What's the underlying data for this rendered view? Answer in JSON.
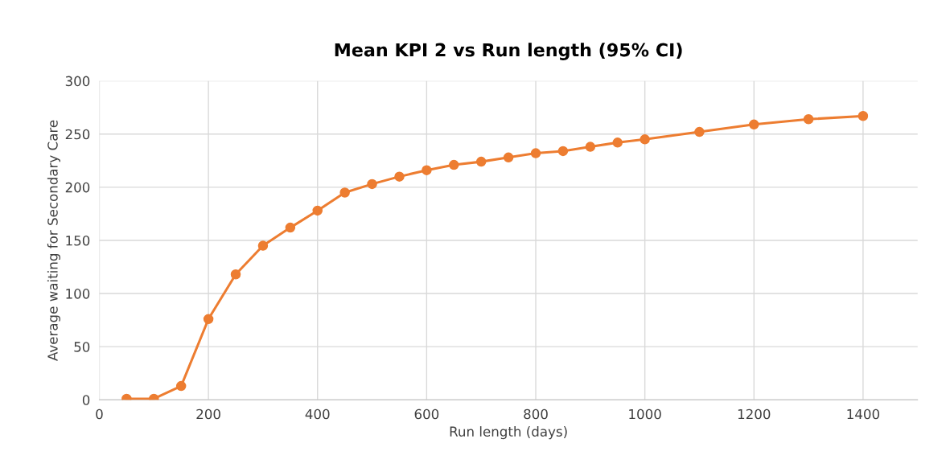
{
  "chart_data": {
    "type": "line",
    "title": "Mean KPI 2 vs Run length (95% CI)",
    "xlabel": "Run length (days)",
    "ylabel": "Average waiting for Secondary Care",
    "x": [
      50,
      100,
      150,
      200,
      250,
      300,
      350,
      400,
      450,
      500,
      550,
      600,
      650,
      700,
      750,
      800,
      850,
      900,
      950,
      1000,
      1100,
      1200,
      1300,
      1400
    ],
    "series": [
      {
        "color": "#ed7d31",
        "values": [
          1,
          1,
          13,
          76,
          118,
          145,
          162,
          178,
          195,
          203,
          210,
          216,
          221,
          224,
          228,
          232,
          234,
          238,
          242,
          245,
          252,
          259,
          264,
          267
        ]
      }
    ],
    "xlim": [
      0,
      1500
    ],
    "xticks": [
      0,
      200,
      400,
      600,
      800,
      1000,
      1200,
      1400
    ],
    "ylim": [
      0,
      300
    ],
    "yticks": [
      0,
      50,
      100,
      150,
      200,
      250,
      300
    ],
    "grid": true,
    "marker": "circle",
    "line_style": "solid",
    "legend": false
  }
}
